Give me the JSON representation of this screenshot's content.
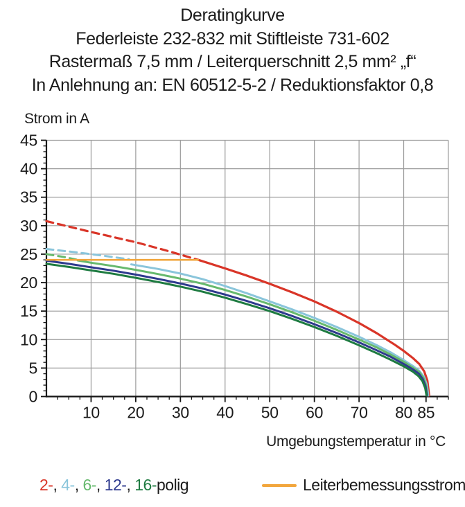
{
  "title": {
    "line1": "Deratingkurve",
    "line2": "Federleiste 232-832 mit Stiftleiste 731-602",
    "line3": "Rastermaß 7,5 mm / Leiterquerschnitt 2,5 mm² „f“",
    "line4": "In Anlehnung an: EN 60512-5-2 / Reduktionsfaktor 0,8"
  },
  "chart_data": {
    "type": "line",
    "y_axis_title": "Strom in A",
    "x_axis_title": "Umgebungstemperatur in °C",
    "xlim": [
      0,
      90
    ],
    "ylim": [
      0,
      45
    ],
    "x_gridlines": [
      10,
      20,
      30,
      40,
      50,
      60,
      70,
      80,
      90
    ],
    "y_gridlines": [
      5,
      10,
      15,
      20,
      25,
      30,
      35,
      40,
      45
    ],
    "x_tick_labels": [
      10,
      20,
      30,
      40,
      50,
      60,
      70,
      80,
      85
    ],
    "y_tick_labels": [
      0,
      5,
      10,
      15,
      20,
      25,
      30,
      35,
      40,
      45
    ],
    "x_minor_step": 2.5,
    "y_minor_step": 1,
    "grid_on": true,
    "colors": {
      "grid": "#9b9b9b",
      "axis": "#141414",
      "text": "#1b1b1b"
    },
    "series": [
      {
        "name": "2-polig",
        "color": "#d93528",
        "width": 3.2,
        "segments": [
          {
            "style": "dashed",
            "points": [
              [
                0,
                30.8
              ],
              [
                10,
                28.9
              ],
              [
                20,
                27.1
              ],
              [
                27,
                25.6
              ],
              [
                34,
                24.0
              ]
            ]
          },
          {
            "style": "solid",
            "points": [
              [
                34,
                24.0
              ],
              [
                40,
                22.5
              ],
              [
                45,
                21.2
              ],
              [
                50,
                19.8
              ],
              [
                55,
                18.3
              ],
              [
                60,
                16.7
              ],
              [
                65,
                14.9
              ],
              [
                70,
                12.9
              ],
              [
                74,
                11.1
              ],
              [
                78,
                9.1
              ],
              [
                80,
                8.0
              ],
              [
                82,
                6.8
              ],
              [
                83.5,
                5.7
              ],
              [
                84.6,
                4.4
              ],
              [
                85.3,
                2.8
              ],
              [
                85.7,
                0.2
              ]
            ]
          }
        ]
      },
      {
        "name": "4-polig",
        "color": "#8ac5db",
        "width": 3,
        "segments": [
          {
            "style": "dashed",
            "points": [
              [
                0,
                25.9
              ],
              [
                7,
                25.3
              ],
              [
                13,
                24.7
              ],
              [
                18.5,
                24.1
              ]
            ]
          },
          {
            "style": "solid",
            "points": [
              [
                19,
                23.2
              ],
              [
                25,
                22.4
              ],
              [
                30,
                21.6
              ],
              [
                35,
                20.6
              ],
              [
                40,
                19.4
              ],
              [
                45,
                18.1
              ],
              [
                50,
                16.7
              ],
              [
                55,
                15.3
              ],
              [
                60,
                13.8
              ],
              [
                65,
                12.2
              ],
              [
                70,
                10.5
              ],
              [
                74,
                9.0
              ],
              [
                77,
                7.8
              ],
              [
                80,
                6.4
              ],
              [
                82,
                5.4
              ],
              [
                83.5,
                4.5
              ],
              [
                84.6,
                3.4
              ],
              [
                85.2,
                2.0
              ],
              [
                85.5,
                0.2
              ]
            ]
          }
        ]
      },
      {
        "name": "6-polig",
        "color": "#66b96d",
        "width": 3,
        "segments": [
          {
            "style": "dashed",
            "points": [
              [
                0,
                25.0
              ],
              [
                4,
                24.5
              ],
              [
                7,
                24.0
              ]
            ]
          },
          {
            "style": "solid",
            "points": [
              [
                7,
                23.9
              ],
              [
                10,
                23.5
              ],
              [
                15,
                22.9
              ],
              [
                20,
                22.25
              ],
              [
                25,
                21.5
              ],
              [
                30,
                20.7
              ],
              [
                35,
                19.8
              ],
              [
                40,
                18.7
              ],
              [
                45,
                17.5
              ],
              [
                50,
                16.2
              ],
              [
                55,
                14.8
              ],
              [
                60,
                13.3
              ],
              [
                65,
                11.7
              ],
              [
                70,
                10.0
              ],
              [
                74,
                8.6
              ],
              [
                77,
                7.4
              ],
              [
                80,
                6.1
              ],
              [
                82,
                5.1
              ],
              [
                83.5,
                4.3
              ],
              [
                84.4,
                3.3
              ],
              [
                85,
                2.0
              ],
              [
                85.3,
                0.2
              ]
            ]
          }
        ]
      },
      {
        "name": "12-polig",
        "color": "#2e3a8e",
        "width": 3,
        "segments": [
          {
            "style": "solid",
            "points": [
              [
                0,
                23.85
              ],
              [
                5,
                23.3
              ],
              [
                10,
                22.7
              ],
              [
                15,
                22.1
              ],
              [
                20,
                21.4
              ],
              [
                25,
                20.65
              ],
              [
                30,
                19.85
              ],
              [
                35,
                18.95
              ],
              [
                40,
                17.9
              ],
              [
                45,
                16.75
              ],
              [
                50,
                15.5
              ],
              [
                55,
                14.15
              ],
              [
                60,
                12.7
              ],
              [
                65,
                11.15
              ],
              [
                70,
                9.5
              ],
              [
                74,
                8.1
              ],
              [
                77,
                7.0
              ],
              [
                80,
                5.7
              ],
              [
                82,
                4.8
              ],
              [
                83.4,
                4.0
              ],
              [
                84.3,
                3.0
              ],
              [
                84.9,
                1.8
              ],
              [
                85.2,
                0.2
              ]
            ]
          }
        ]
      },
      {
        "name": "16-polig",
        "color": "#1e7b41",
        "width": 3,
        "segments": [
          {
            "style": "solid",
            "points": [
              [
                0,
                23.3
              ],
              [
                5,
                22.75
              ],
              [
                10,
                22.15
              ],
              [
                15,
                21.55
              ],
              [
                20,
                20.85
              ],
              [
                25,
                20.1
              ],
              [
                30,
                19.3
              ],
              [
                35,
                18.4
              ],
              [
                40,
                17.35
              ],
              [
                45,
                16.2
              ],
              [
                50,
                15.0
              ],
              [
                55,
                13.65
              ],
              [
                60,
                12.2
              ],
              [
                65,
                10.65
              ],
              [
                70,
                9.0
              ],
              [
                74,
                7.6
              ],
              [
                77,
                6.5
              ],
              [
                80,
                5.3
              ],
              [
                82,
                4.4
              ],
              [
                83.3,
                3.6
              ],
              [
                84.2,
                2.7
              ],
              [
                84.8,
                1.5
              ],
              [
                85.1,
                0.2
              ]
            ]
          }
        ]
      },
      {
        "name": "Leiterbemessungsstrom",
        "color": "#f2a63c",
        "width": 2.6,
        "segments": [
          {
            "style": "solid",
            "points": [
              [
                0,
                24
              ],
              [
                34,
                24
              ]
            ]
          }
        ]
      }
    ]
  },
  "legend": {
    "pole_entries": [
      {
        "label": "2-",
        "color": "#d93528"
      },
      {
        "label": "4-",
        "color": "#8ac5db"
      },
      {
        "label": "6-",
        "color": "#66b96d"
      },
      {
        "label": "12-",
        "color": "#2e3a8e"
      },
      {
        "label": "16-",
        "color": "#1e7b41"
      }
    ],
    "pole_separator": ", ",
    "pole_suffix": "polig",
    "rated_current_label": "Leiterbemessungsstrom",
    "rated_current_color": "#f2a63c"
  }
}
